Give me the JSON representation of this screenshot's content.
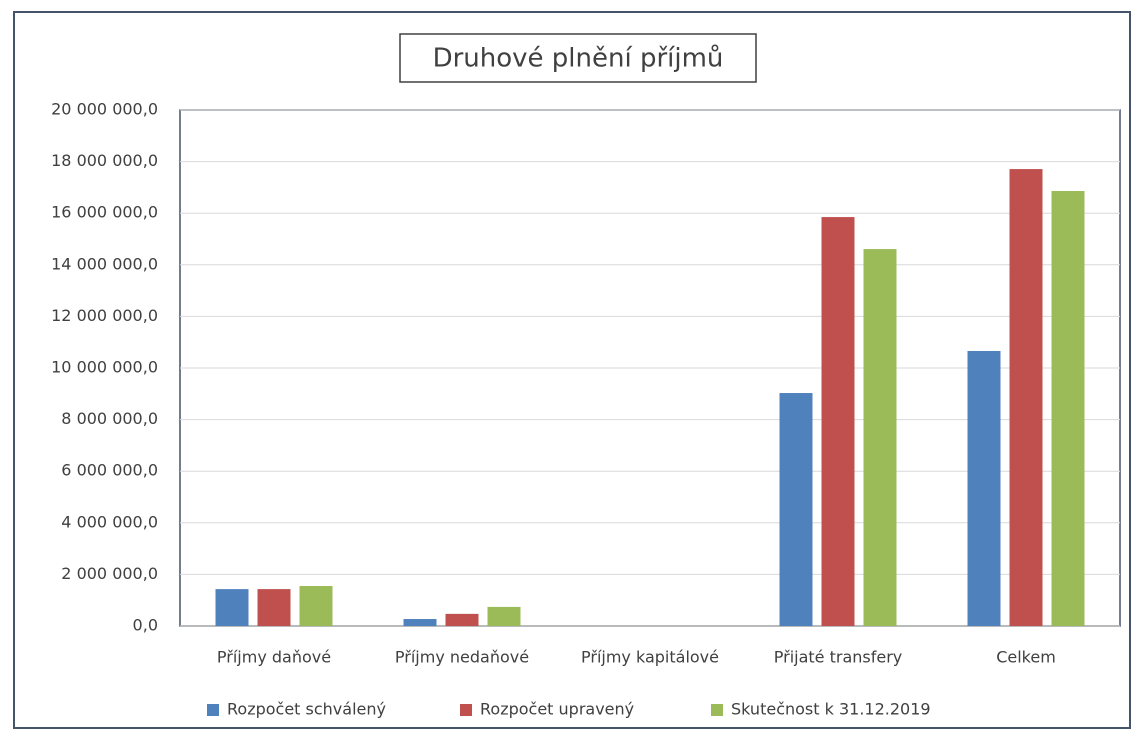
{
  "chart_data": {
    "type": "bar",
    "title": "Druhové plnění příjmů",
    "categories": [
      "Příjmy daňové",
      "Příjmy nedaňové",
      "Příjmy kapitálové",
      "Přijaté transfery",
      "Celkem"
    ],
    "series": [
      {
        "name": "Rozpočet schválený",
        "color": "#4f81bd",
        "values": [
          1430000,
          270000,
          0,
          9030000,
          10660000
        ]
      },
      {
        "name": "Rozpočet upravený",
        "color": "#c0504d",
        "values": [
          1430000,
          470000,
          0,
          15850000,
          17710000
        ]
      },
      {
        "name": "Skutečnost k 31.12.2019",
        "color": "#9bbb59",
        "values": [
          1550000,
          740000,
          0,
          14610000,
          16860000
        ]
      }
    ],
    "ylim": [
      0,
      20000000
    ],
    "yticks": [
      {
        "value": 0,
        "label": "0,0"
      },
      {
        "value": 2000000,
        "label": "2 000 000,0"
      },
      {
        "value": 4000000,
        "label": "4 000 000,0"
      },
      {
        "value": 6000000,
        "label": "6 000 000,0"
      },
      {
        "value": 8000000,
        "label": "8 000 000,0"
      },
      {
        "value": 10000000,
        "label": "10 000 000,0"
      },
      {
        "value": 12000000,
        "label": "12 000 000,0"
      },
      {
        "value": 14000000,
        "label": "14 000 000,0"
      },
      {
        "value": 16000000,
        "label": "16 000 000,0"
      },
      {
        "value": 18000000,
        "label": "18 000 000,0"
      },
      {
        "value": 20000000,
        "label": "20 000 000,0"
      }
    ],
    "grid": true,
    "legend": "bottom"
  }
}
